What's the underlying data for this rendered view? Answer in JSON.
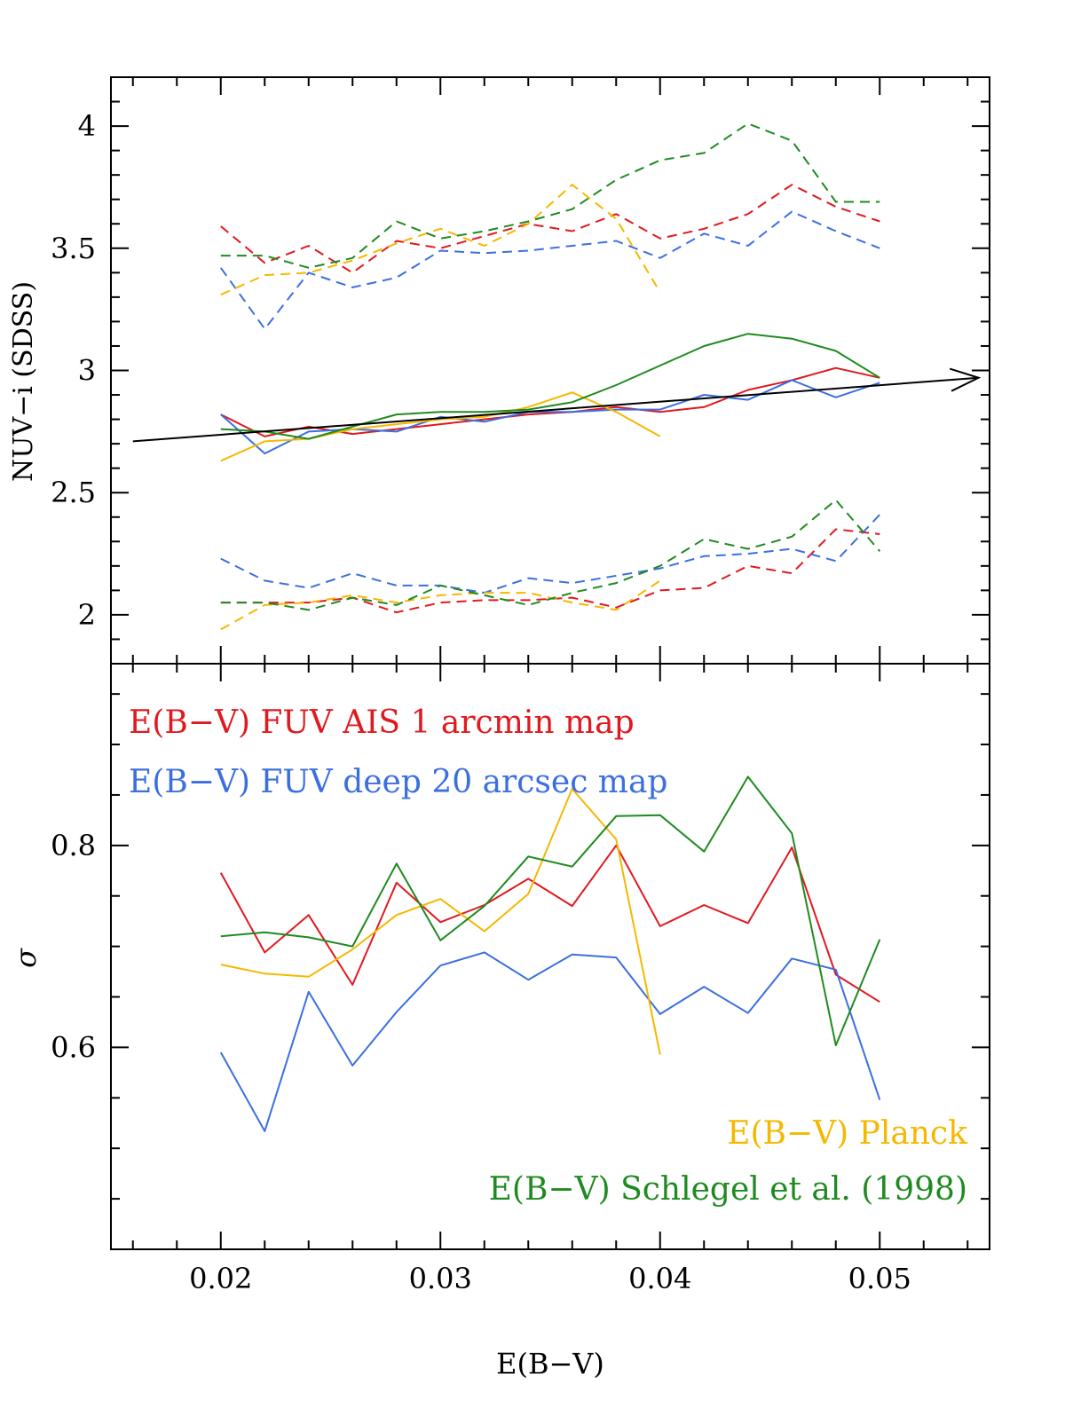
{
  "colors": {
    "red": "#e0191f",
    "blue": "#3b6fe0",
    "yellow": "#f5b800",
    "green": "#1f8a1f",
    "black": "#000000"
  },
  "chart_data": [
    {
      "type": "line",
      "panel": "top",
      "xlabel": "E(B−V)",
      "ylabel": "NUV−i (SDSS)",
      "xlim": [
        0.015,
        0.055
      ],
      "ylim": [
        1.8,
        4.2
      ],
      "xticks": [
        0.02,
        0.03,
        0.04,
        0.05
      ],
      "yticks": [
        2,
        2.5,
        3,
        3.5,
        4
      ],
      "ytick_labels": [
        "2",
        "2.5",
        "3",
        "3.5",
        "4"
      ],
      "arrow": {
        "x": [
          0.016,
          0.0545
        ],
        "y": [
          2.71,
          2.97
        ]
      },
      "series": [
        {
          "name": "red upper dashed",
          "color": "red",
          "style": "dashed",
          "x": [
            0.02,
            0.022,
            0.024,
            0.026,
            0.028,
            0.03,
            0.032,
            0.034,
            0.036,
            0.038,
            0.04,
            0.042,
            0.044,
            0.046,
            0.048,
            0.05
          ],
          "y": [
            3.59,
            3.44,
            3.51,
            3.4,
            3.53,
            3.5,
            3.55,
            3.6,
            3.57,
            3.64,
            3.54,
            3.58,
            3.64,
            3.76,
            3.67,
            3.61
          ]
        },
        {
          "name": "blue upper dashed",
          "color": "blue",
          "style": "dashed",
          "x": [
            0.02,
            0.022,
            0.024,
            0.026,
            0.028,
            0.03,
            0.032,
            0.034,
            0.036,
            0.038,
            0.04,
            0.042,
            0.044,
            0.046,
            0.048,
            0.05
          ],
          "y": [
            3.42,
            3.17,
            3.4,
            3.34,
            3.38,
            3.49,
            3.48,
            3.49,
            3.51,
            3.53,
            3.46,
            3.56,
            3.51,
            3.65,
            3.57,
            3.5
          ]
        },
        {
          "name": "yellow upper dashed",
          "color": "yellow",
          "style": "dashed",
          "x": [
            0.02,
            0.022,
            0.024,
            0.026,
            0.028,
            0.03,
            0.032,
            0.034,
            0.036,
            0.038,
            0.04
          ],
          "y": [
            3.31,
            3.39,
            3.4,
            3.45,
            3.52,
            3.58,
            3.51,
            3.6,
            3.76,
            3.62,
            3.32
          ]
        },
        {
          "name": "green upper dashed",
          "color": "green",
          "style": "dashed",
          "x": [
            0.02,
            0.022,
            0.024,
            0.026,
            0.028,
            0.03,
            0.032,
            0.034,
            0.036,
            0.038,
            0.04,
            0.042,
            0.044,
            0.046,
            0.048,
            0.05
          ],
          "y": [
            3.47,
            3.47,
            3.42,
            3.46,
            3.61,
            3.54,
            3.57,
            3.61,
            3.66,
            3.78,
            3.86,
            3.89,
            4.01,
            3.94,
            3.69,
            3.69
          ]
        },
        {
          "name": "red solid",
          "color": "red",
          "style": "solid",
          "x": [
            0.02,
            0.022,
            0.024,
            0.026,
            0.028,
            0.03,
            0.032,
            0.034,
            0.036,
            0.038,
            0.04,
            0.042,
            0.044,
            0.046,
            0.048,
            0.05
          ],
          "y": [
            2.82,
            2.73,
            2.77,
            2.74,
            2.76,
            2.78,
            2.8,
            2.82,
            2.83,
            2.85,
            2.83,
            2.85,
            2.92,
            2.96,
            3.01,
            2.97
          ]
        },
        {
          "name": "blue solid",
          "color": "blue",
          "style": "solid",
          "x": [
            0.02,
            0.022,
            0.024,
            0.026,
            0.028,
            0.03,
            0.032,
            0.034,
            0.036,
            0.038,
            0.04,
            0.042,
            0.044,
            0.046,
            0.048,
            0.05
          ],
          "y": [
            2.82,
            2.66,
            2.75,
            2.76,
            2.75,
            2.81,
            2.79,
            2.83,
            2.83,
            2.84,
            2.84,
            2.9,
            2.88,
            2.96,
            2.89,
            2.95
          ]
        },
        {
          "name": "yellow solid",
          "color": "yellow",
          "style": "solid",
          "x": [
            0.02,
            0.022,
            0.024,
            0.026,
            0.028,
            0.03,
            0.032,
            0.034,
            0.036,
            0.038,
            0.04
          ],
          "y": [
            2.63,
            2.71,
            2.72,
            2.76,
            2.78,
            2.8,
            2.81,
            2.85,
            2.91,
            2.83,
            2.73
          ]
        },
        {
          "name": "green solid",
          "color": "green",
          "style": "solid",
          "x": [
            0.02,
            0.022,
            0.024,
            0.026,
            0.028,
            0.03,
            0.032,
            0.034,
            0.036,
            0.038,
            0.04,
            0.042,
            0.044,
            0.046,
            0.048,
            0.05
          ],
          "y": [
            2.76,
            2.75,
            2.72,
            2.77,
            2.82,
            2.83,
            2.83,
            2.84,
            2.87,
            2.94,
            3.02,
            3.1,
            3.15,
            3.13,
            3.08,
            2.97
          ]
        },
        {
          "name": "red lower dashed",
          "color": "red",
          "style": "dashed",
          "x": [
            0.02,
            0.022,
            0.024,
            0.026,
            0.028,
            0.03,
            0.032,
            0.034,
            0.036,
            0.038,
            0.04,
            0.042,
            0.044,
            0.046,
            0.048,
            0.05
          ],
          "y": [
            2.05,
            2.05,
            2.05,
            2.07,
            2.01,
            2.05,
            2.06,
            2.06,
            2.07,
            2.03,
            2.1,
            2.11,
            2.2,
            2.17,
            2.35,
            2.33
          ]
        },
        {
          "name": "blue lower dashed",
          "color": "blue",
          "style": "dashed",
          "x": [
            0.02,
            0.022,
            0.024,
            0.026,
            0.028,
            0.03,
            0.032,
            0.034,
            0.036,
            0.038,
            0.04,
            0.042,
            0.044,
            0.046,
            0.048,
            0.05
          ],
          "y": [
            2.23,
            2.14,
            2.11,
            2.17,
            2.12,
            2.12,
            2.09,
            2.15,
            2.13,
            2.16,
            2.19,
            2.24,
            2.25,
            2.27,
            2.22,
            2.41
          ]
        },
        {
          "name": "yellow lower dashed",
          "color": "yellow",
          "style": "dashed",
          "x": [
            0.02,
            0.022,
            0.024,
            0.026,
            0.028,
            0.03,
            0.032,
            0.034,
            0.036,
            0.038,
            0.04
          ],
          "y": [
            1.94,
            2.04,
            2.05,
            2.08,
            2.05,
            2.08,
            2.09,
            2.09,
            2.05,
            2.02,
            2.14
          ]
        },
        {
          "name": "green lower dashed",
          "color": "green",
          "style": "dashed",
          "x": [
            0.02,
            0.022,
            0.024,
            0.026,
            0.028,
            0.03,
            0.032,
            0.034,
            0.036,
            0.038,
            0.04,
            0.042,
            0.044,
            0.046,
            0.048,
            0.05
          ],
          "y": [
            2.05,
            2.05,
            2.02,
            2.07,
            2.04,
            2.12,
            2.08,
            2.04,
            2.09,
            2.13,
            2.2,
            2.31,
            2.27,
            2.32,
            2.47,
            2.26
          ]
        }
      ]
    },
    {
      "type": "line",
      "panel": "bottom",
      "xlabel": "E(B−V)",
      "ylabel": "σ",
      "xlim": [
        0.015,
        0.055
      ],
      "ylim": [
        0.4,
        0.98
      ],
      "xticks": [
        0.02,
        0.03,
        0.04,
        0.05
      ],
      "xtick_labels": [
        "0.02",
        "0.03",
        "0.04",
        "0.05"
      ],
      "yticks": [
        0.6,
        0.8
      ],
      "ytick_labels": [
        "0.6",
        "0.8"
      ],
      "legend": [
        {
          "label": "E(B−V) FUV AIS 1 arcmin map",
          "color": "red",
          "placement": "top-left"
        },
        {
          "label": "E(B−V) FUV deep 20 arcsec map",
          "color": "blue",
          "placement": "top-left"
        },
        {
          "label": "E(B−V) Planck",
          "color": "yellow",
          "placement": "bottom-right"
        },
        {
          "label": "E(B−V) Schlegel et al. (1998)",
          "color": "green",
          "placement": "bottom-right"
        }
      ],
      "series": [
        {
          "name": "E(B−V) FUV AIS 1 arcmin map",
          "color": "red",
          "x": [
            0.02,
            0.022,
            0.024,
            0.026,
            0.028,
            0.03,
            0.032,
            0.034,
            0.036,
            0.038,
            0.04,
            0.042,
            0.044,
            0.046,
            0.048,
            0.05
          ],
          "y": [
            0.773,
            0.694,
            0.731,
            0.662,
            0.763,
            0.724,
            0.741,
            0.767,
            0.74,
            0.8,
            0.72,
            0.741,
            0.723,
            0.798,
            0.672,
            0.645
          ]
        },
        {
          "name": "E(B−V) FUV deep 20 arcsec map",
          "color": "blue",
          "x": [
            0.02,
            0.022,
            0.024,
            0.026,
            0.028,
            0.03,
            0.032,
            0.034,
            0.036,
            0.038,
            0.04,
            0.042,
            0.044,
            0.046,
            0.048,
            0.05
          ],
          "y": [
            0.595,
            0.517,
            0.655,
            0.582,
            0.635,
            0.681,
            0.694,
            0.667,
            0.692,
            0.689,
            0.633,
            0.66,
            0.634,
            0.688,
            0.677,
            0.548
          ]
        },
        {
          "name": "E(B−V) Planck",
          "color": "yellow",
          "x": [
            0.02,
            0.022,
            0.024,
            0.026,
            0.028,
            0.03,
            0.032,
            0.034,
            0.036,
            0.038,
            0.04
          ],
          "y": [
            0.682,
            0.673,
            0.67,
            0.697,
            0.731,
            0.747,
            0.715,
            0.752,
            0.856,
            0.806,
            0.593
          ]
        },
        {
          "name": "E(B−V) Schlegel et al. (1998)",
          "color": "green",
          "x": [
            0.02,
            0.022,
            0.024,
            0.026,
            0.028,
            0.03,
            0.032,
            0.034,
            0.036,
            0.038,
            0.04,
            0.042,
            0.044,
            0.046,
            0.048,
            0.05
          ],
          "y": [
            0.71,
            0.714,
            0.709,
            0.7,
            0.782,
            0.706,
            0.74,
            0.789,
            0.779,
            0.829,
            0.83,
            0.794,
            0.868,
            0.812,
            0.602,
            0.707
          ]
        }
      ]
    }
  ]
}
